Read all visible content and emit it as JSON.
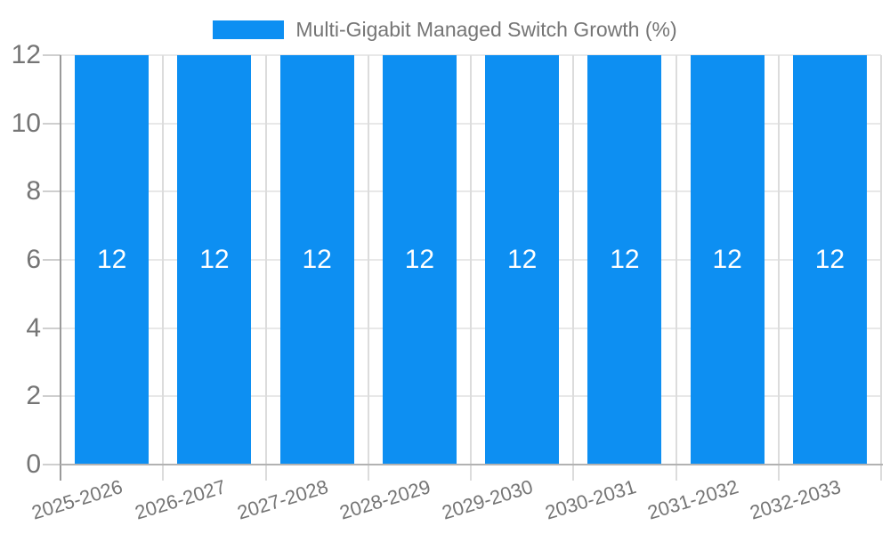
{
  "chart_data": {
    "type": "bar",
    "title": "",
    "categories": [
      "2025-2026",
      "2026-2027",
      "2027-2028",
      "2028-2029",
      "2029-2030",
      "2030-2031",
      "2031-2032",
      "2032-2033"
    ],
    "series": [
      {
        "name": "Multi-Gigabit Managed Switch Growth (%)",
        "values": [
          12,
          12,
          12,
          12,
          12,
          12,
          12,
          12
        ],
        "data_labels": [
          "12",
          "12",
          "12",
          "12",
          "12",
          "12",
          "12",
          "12"
        ]
      }
    ],
    "xlabel": "",
    "ylabel": "",
    "ylim": [
      0,
      12
    ],
    "yticks": [
      0,
      2,
      4,
      6,
      8,
      10,
      12
    ],
    "grid": true,
    "legend_position": "top",
    "colors": {
      "bar": "#0d8ff2",
      "bar_label": "#ffffff",
      "axis_text": "#757575",
      "grid_horizontal": "#e8e8e8",
      "grid_vertical": "#dcdcdc",
      "axis_line_y": "#9a9a9a",
      "axis_line_x": "#b2b2b2",
      "tick_mark": "#cfcfcf",
      "background": "#ffffff"
    }
  }
}
